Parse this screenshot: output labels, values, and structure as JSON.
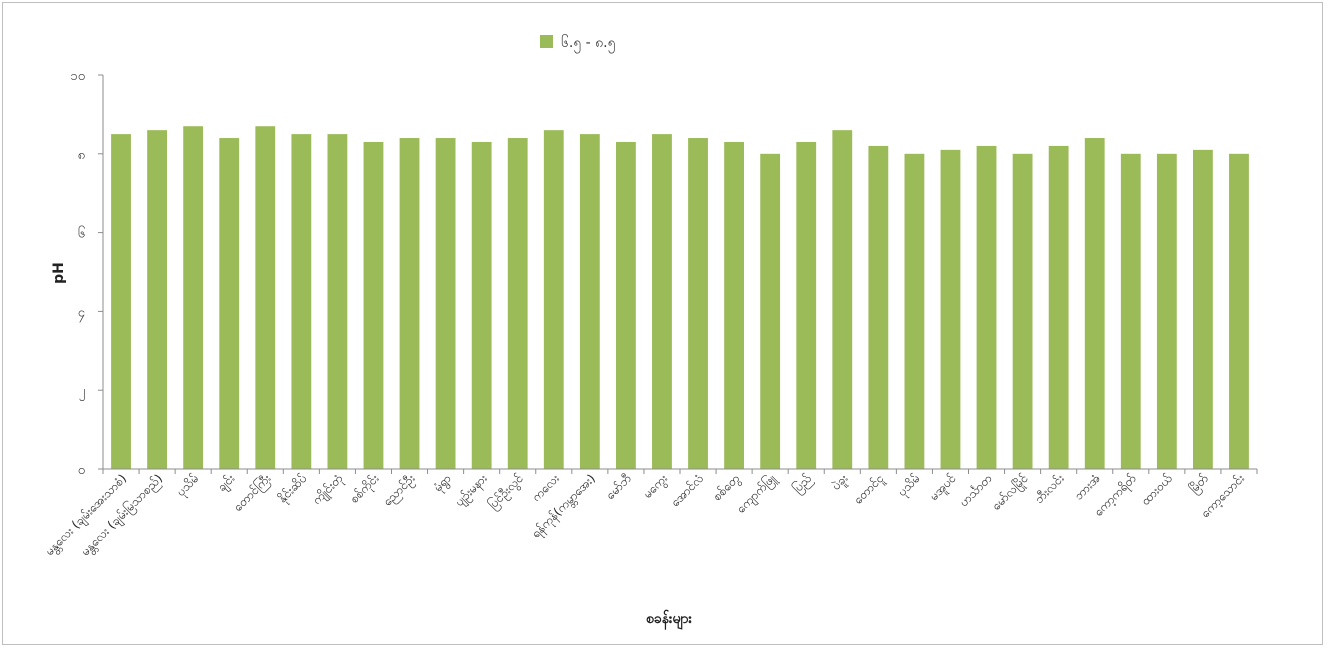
{
  "chart_data": {
    "type": "bar",
    "title": "",
    "xlabel": "စခန်းများ",
    "ylabel": "pH",
    "ylim": [
      0,
      10
    ],
    "yticks": [
      0,
      2,
      4,
      6,
      8,
      10
    ],
    "ytick_labels": [
      "၀",
      "၂",
      "၄",
      "၆",
      "၈",
      "၁၀"
    ],
    "legend_position": "top-center",
    "grid": false,
    "series": [
      {
        "name": "၆.၅ - ၈.၅",
        "color": "#9bbb59",
        "values": [
          8.5,
          8.6,
          8.7,
          8.4,
          8.7,
          8.5,
          8.5,
          8.3,
          8.4,
          8.4,
          8.3,
          8.4,
          8.6,
          8.5,
          8.3,
          8.5,
          8.4,
          8.3,
          8.0,
          8.3,
          8.6,
          8.2,
          8.0,
          8.1,
          8.2,
          8.0,
          8.2,
          8.4,
          8.0,
          8.0,
          8.1,
          8.0
        ]
      }
    ],
    "categories": [
      "မန္တလေး (ချမ်းအေးသာစံ)",
      "မန္တလေး (ချမ်းမြသာစည်)",
      "ပုသိမ်",
      "ချင်း",
      "တောင်ကြီး",
      "နိုင်းဆိပ်",
      "ကျိုင်းတုံ",
      "စစ်ကိုင်း",
      "ညောင်ဦး",
      "မုံရွာ",
      "ပျဉ်းမနား",
      "ပြင်ဦးလွင်",
      "ကလေး",
      "ရန်ကုန်(ကမ္ဘာအေး)",
      "မော်ဘီ",
      "မကွေး",
      "အောင်လံ",
      "စစ်တွေ",
      "ကျောက်ဖြူ",
      "ပြည်",
      "ပဲခူး",
      "တောင်ငူ",
      "ပုသိမ်",
      "မအူပင်",
      "ဟင်္သာတ",
      "မော်လမြိုင်",
      "ဘီးလင်း",
      "ဘားအံ",
      "ကော့ကရိတ်",
      "ထားဝယ်",
      "မြိတ်",
      "ကော့သောင်း"
    ]
  }
}
